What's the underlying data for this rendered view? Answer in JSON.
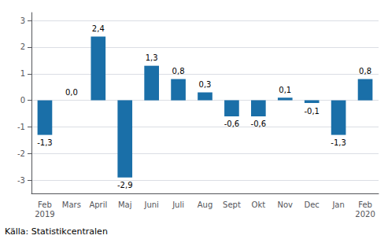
{
  "chart_data": {
    "type": "bar",
    "categories": [
      "Feb\n2019",
      "Mars",
      "April",
      "Maj",
      "Juni",
      "Juli",
      "Aug",
      "Sept",
      "Okt",
      "Nov",
      "Dec",
      "Jan",
      "Feb\n2020"
    ],
    "values": [
      -1.3,
      0.0,
      2.4,
      -2.9,
      1.3,
      0.8,
      0.3,
      -0.6,
      -0.6,
      0.1,
      -0.1,
      -1.3,
      0.8
    ],
    "value_labels": [
      "-1,3",
      "0,0",
      "2,4",
      "-2,9",
      "1,3",
      "0,8",
      "0,3",
      "-0,6",
      "-0,6",
      "0,1",
      "-0,1",
      "-1,3",
      "0,8"
    ],
    "color": "#1a6fa8",
    "ylim": [
      -3.5,
      3.3
    ],
    "yticks": [
      -3,
      -2,
      -1,
      0,
      1,
      2,
      3
    ],
    "grid": true,
    "data_labels": true,
    "annotations": [
      "Källa: Statistikcentralen"
    ]
  }
}
